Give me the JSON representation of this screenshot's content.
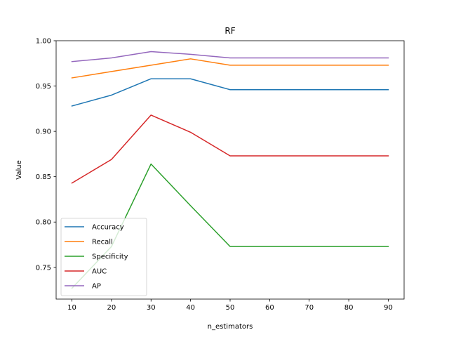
{
  "chart_data": {
    "type": "line",
    "title": "RF",
    "xlabel": "n_estimators",
    "ylabel": "Value",
    "x": [
      10,
      20,
      30,
      40,
      50,
      60,
      70,
      80,
      90
    ],
    "xlim": [
      6,
      94
    ],
    "ylim": [
      0.715,
      1.0
    ],
    "xticks": [
      10,
      20,
      30,
      40,
      50,
      60,
      70,
      80,
      90
    ],
    "yticks": [
      0.75,
      0.8,
      0.85,
      0.9,
      0.95,
      1.0
    ],
    "ytick_labels": [
      "0.75",
      "0.80",
      "0.85",
      "0.90",
      "0.95",
      "1.00"
    ],
    "legend_position": "lower-left",
    "series": [
      {
        "name": "Accuracy",
        "color": "#1f77b4",
        "values": [
          0.928,
          0.94,
          0.958,
          0.958,
          0.946,
          0.946,
          0.946,
          0.946,
          0.946
        ]
      },
      {
        "name": "Recall",
        "color": "#ff7f0e",
        "values": [
          0.959,
          0.966,
          0.973,
          0.98,
          0.973,
          0.973,
          0.973,
          0.973,
          0.973
        ]
      },
      {
        "name": "Specificity",
        "color": "#2ca02c",
        "values": [
          0.727,
          0.773,
          0.864,
          0.818,
          0.773,
          0.773,
          0.773,
          0.773,
          0.773
        ]
      },
      {
        "name": "AUC",
        "color": "#d62728",
        "values": [
          0.843,
          0.869,
          0.918,
          0.899,
          0.873,
          0.873,
          0.873,
          0.873,
          0.873
        ]
      },
      {
        "name": "AP",
        "color": "#9467bd",
        "values": [
          0.977,
          0.981,
          0.988,
          0.985,
          0.981,
          0.981,
          0.981,
          0.981,
          0.981
        ]
      }
    ]
  }
}
